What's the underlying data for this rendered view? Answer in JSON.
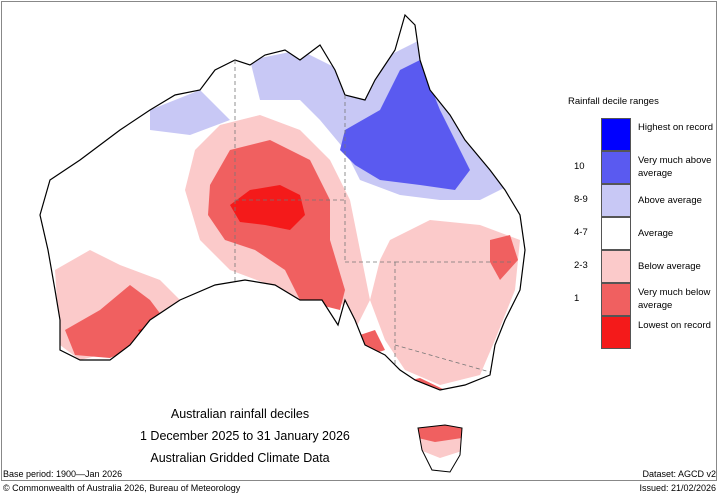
{
  "map": {
    "title": "Australian rainfall deciles",
    "period": "1 December 2025 to 31 January 2026",
    "source": "Australian Gridded Climate Data",
    "base_period": "Base period: 1900—Jan 2026",
    "dataset": "Dataset: AGCD v2",
    "copyright": "© Commonwealth of Australia 2026, Bureau of Meteorology",
    "issued": "Issued: 21/02/2026"
  },
  "legend": {
    "title": "Rainfall decile ranges",
    "items": [
      {
        "decile": "",
        "label": "Highest on record",
        "color": "#0000ff"
      },
      {
        "decile": "10",
        "label": "Very much above average",
        "color": "#5a5af0"
      },
      {
        "decile": "8-9",
        "label": "Above average",
        "color": "#c8c8f5"
      },
      {
        "decile": "4-7",
        "label": "Average",
        "color": "#ffffff"
      },
      {
        "decile": "2-3",
        "label": "Below average",
        "color": "#fbcaca"
      },
      {
        "decile": "1",
        "label": "Very much below average",
        "color": "#f06060"
      },
      {
        "decile": "",
        "label": "Lowest on record",
        "color": "#f41a1a"
      }
    ]
  }
}
